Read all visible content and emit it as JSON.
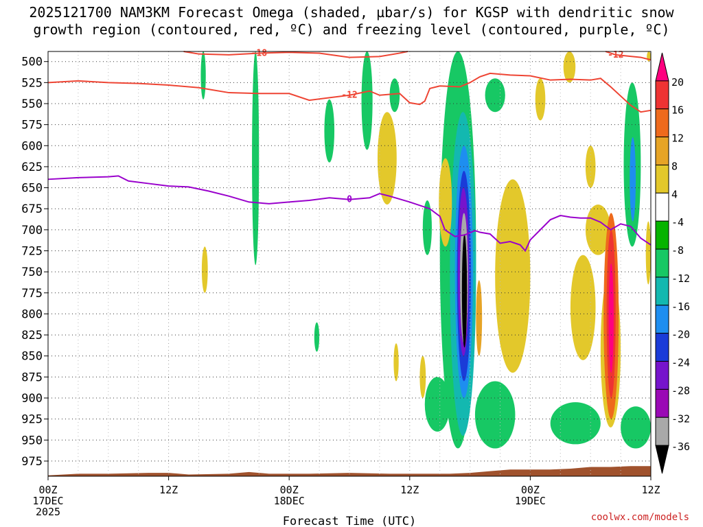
{
  "header": {
    "title_line1": "2025121700 NAM3KM Forecast Omega (shaded, µbar/s) for KGSP with dendritic snow",
    "title_line2": "growth region (contoured, red, ºC) and freezing level (contoured, purple, ºC)"
  },
  "footer": {
    "credit": "coolwx.com/models"
  },
  "chart_data": {
    "type": "heatmap",
    "xlabel": "Forecast Time (UTC)",
    "ylabel": "",
    "x_ticks": [
      {
        "h": 0,
        "l1": "00Z",
        "l2": "17DEC",
        "l3": "2025"
      },
      {
        "h": 12,
        "l1": "12Z",
        "l2": "",
        "l3": ""
      },
      {
        "h": 24,
        "l1": "00Z",
        "l2": "18DEC",
        "l3": ""
      },
      {
        "h": 36,
        "l1": "12Z",
        "l2": "",
        "l3": ""
      },
      {
        "h": 48,
        "l1": "00Z",
        "l2": "19DEC",
        "l3": ""
      },
      {
        "h": 60,
        "l1": "12Z",
        "l2": "",
        "l3": ""
      }
    ],
    "xlim": [
      0,
      60
    ],
    "y_ticks": [
      500,
      525,
      550,
      575,
      600,
      625,
      650,
      675,
      700,
      725,
      750,
      775,
      800,
      825,
      850,
      875,
      900,
      925,
      950,
      975
    ],
    "ylim": [
      488,
      993
    ],
    "grid": true,
    "colorbar": {
      "labels": [
        "20",
        "16",
        "12",
        "8",
        "4",
        "-4",
        "-8",
        "-12",
        "-16",
        "-20",
        "-24",
        "-28",
        "-32",
        "-36"
      ],
      "bins": [
        {
          "color": "#ff007f",
          "label": ""
        },
        {
          "color": "#ee3333",
          "label": "20"
        },
        {
          "color": "#ee6a1c",
          "label": "16"
        },
        {
          "color": "#e6a426",
          "label": "12"
        },
        {
          "color": "#e3c82b",
          "label": "8"
        },
        {
          "color": "#ffffff",
          "label": "4"
        },
        {
          "color": "#06b300",
          "label": "-4"
        },
        {
          "color": "#17c864",
          "label": "-8"
        },
        {
          "color": "#13b8b0",
          "label": "-12"
        },
        {
          "color": "#1e8ef0",
          "label": "-16"
        },
        {
          "color": "#1a3bd8",
          "label": "-20"
        },
        {
          "color": "#7614cc",
          "label": "-24"
        },
        {
          "color": "#9a09b5",
          "label": "-28"
        },
        {
          "color": "#a9a9a9",
          "label": "-32"
        },
        {
          "color": "#000000",
          "label": "-36"
        }
      ]
    },
    "contours": [
      {
        "name": "",
        "label": "-18",
        "color": "#ee4433",
        "points": [
          [
            13.5,
            488
          ],
          [
            15,
            491
          ],
          [
            18,
            492
          ],
          [
            21,
            490
          ],
          [
            24,
            489
          ],
          [
            27,
            490
          ],
          [
            30,
            495
          ],
          [
            33,
            494
          ],
          [
            35,
            490
          ],
          [
            35.8,
            488
          ]
        ]
      },
      {
        "name": "",
        "label": "-12",
        "color": "#ee4433",
        "points": [
          [
            0,
            525
          ],
          [
            3,
            523
          ],
          [
            6,
            525
          ],
          [
            9,
            526
          ],
          [
            12,
            528
          ],
          [
            15,
            531
          ],
          [
            18,
            537
          ],
          [
            21,
            538
          ],
          [
            24,
            538
          ],
          [
            26,
            546
          ],
          [
            28,
            543
          ],
          [
            30,
            540
          ],
          [
            32,
            535
          ],
          [
            33,
            540
          ],
          [
            35,
            538
          ],
          [
            36,
            549
          ],
          [
            37,
            551
          ],
          [
            37.5,
            547
          ],
          [
            38,
            532
          ],
          [
            39,
            529
          ],
          [
            41,
            530
          ],
          [
            42,
            525
          ],
          [
            43,
            518
          ],
          [
            44,
            514
          ],
          [
            46,
            516
          ],
          [
            48,
            517
          ],
          [
            50,
            522
          ],
          [
            52,
            521
          ],
          [
            54,
            522
          ],
          [
            55,
            520
          ],
          [
            56,
            530
          ],
          [
            58,
            552
          ],
          [
            59,
            560
          ],
          [
            60,
            558
          ]
        ]
      },
      {
        "name": "",
        "label": "-12",
        "color": "#ee4433",
        "points": [
          [
            55.5,
            488
          ],
          [
            56.5,
            492
          ],
          [
            59,
            495
          ],
          [
            60,
            498
          ]
        ]
      },
      {
        "name": "",
        "label": "0",
        "color": "#9900cc",
        "points": [
          [
            0,
            640
          ],
          [
            3,
            638
          ],
          [
            6,
            637
          ],
          [
            7,
            636
          ],
          [
            8,
            642
          ],
          [
            10,
            645
          ],
          [
            12,
            648
          ],
          [
            14,
            649
          ],
          [
            16,
            654
          ],
          [
            18,
            660
          ],
          [
            20,
            667
          ],
          [
            22,
            669
          ],
          [
            24,
            667
          ],
          [
            26,
            665
          ],
          [
            28,
            662
          ],
          [
            30,
            664
          ],
          [
            32,
            662
          ],
          [
            33,
            657
          ],
          [
            34,
            660
          ],
          [
            36,
            667
          ],
          [
            38,
            675
          ],
          [
            39,
            684
          ],
          [
            39.5,
            700
          ],
          [
            40.5,
            708
          ],
          [
            41.5,
            706
          ],
          [
            42.5,
            701
          ],
          [
            43,
            703
          ],
          [
            44,
            705
          ],
          [
            45,
            716
          ],
          [
            46,
            714
          ],
          [
            47,
            718
          ],
          [
            47.5,
            725
          ],
          [
            48,
            712
          ],
          [
            49,
            700
          ],
          [
            50,
            688
          ],
          [
            51,
            683
          ],
          [
            52,
            685
          ],
          [
            53,
            686
          ],
          [
            54,
            686
          ],
          [
            55,
            691
          ],
          [
            56,
            700
          ],
          [
            57,
            693
          ],
          [
            58,
            696
          ],
          [
            59,
            710
          ],
          [
            60,
            718
          ]
        ]
      }
    ],
    "blobs": [
      {
        "color": "#17c864",
        "x0": 15.2,
        "x1": 15.7,
        "p0": 488,
        "p1": 545
      },
      {
        "color": "#17c864",
        "x0": 20.3,
        "x1": 21,
        "p0": 488,
        "p1": 742
      },
      {
        "color": "#17c864",
        "x0": 31.2,
        "x1": 32.3,
        "p0": 488,
        "p1": 605
      },
      {
        "color": "#17c864",
        "x0": 34,
        "x1": 35,
        "p0": 520,
        "p1": 560
      },
      {
        "color": "#17c864",
        "x0": 27.5,
        "x1": 28.5,
        "p0": 545,
        "p1": 620
      },
      {
        "color": "#17c864",
        "x0": 26.5,
        "x1": 27,
        "p0": 810,
        "p1": 845
      },
      {
        "color": "#e3c82b",
        "x0": 32.8,
        "x1": 34.7,
        "p0": 560,
        "p1": 670
      },
      {
        "color": "#e3c82b",
        "x0": 15.3,
        "x1": 15.9,
        "p0": 720,
        "p1": 775
      },
      {
        "color": "#e3c82b",
        "x0": 34.4,
        "x1": 34.9,
        "p0": 835,
        "p1": 880
      },
      {
        "color": "#e3c82b",
        "x0": 37,
        "x1": 37.6,
        "p0": 850,
        "p1": 900
      },
      {
        "color": "#17c864",
        "x0": 37.3,
        "x1": 38.2,
        "p0": 665,
        "p1": 730
      },
      {
        "color": "#17c864",
        "x0": 39,
        "x1": 42.6,
        "p0": 488,
        "p1": 960
      },
      {
        "color": "#13b8b0",
        "x0": 40,
        "x1": 42.6,
        "p0": 560,
        "p1": 945
      },
      {
        "color": "#1e8ef0",
        "x0": 40.5,
        "x1": 42.3,
        "p0": 600,
        "p1": 900
      },
      {
        "color": "#1a3bd8",
        "x0": 40.7,
        "x1": 42.1,
        "p0": 630,
        "p1": 880
      },
      {
        "color": "#7614cc",
        "x0": 40.8,
        "x1": 41.9,
        "p0": 650,
        "p1": 850
      },
      {
        "color": "#a9a9a9",
        "x0": 41,
        "x1": 41.8,
        "p0": 680,
        "p1": 835
      },
      {
        "color": "#000000",
        "x0": 41.2,
        "x1": 41.7,
        "p0": 705,
        "p1": 840
      },
      {
        "color": "#e3c82b",
        "x0": 44.5,
        "x1": 48,
        "p0": 640,
        "p1": 870
      },
      {
        "color": "#e6a426",
        "x0": 42.6,
        "x1": 43.2,
        "p0": 760,
        "p1": 850
      },
      {
        "color": "#e6a426",
        "x0": 39.4,
        "x1": 40.1,
        "p0": 630,
        "p1": 700
      },
      {
        "color": "#e3c82b",
        "x0": 38.9,
        "x1": 40.2,
        "p0": 615,
        "p1": 720
      },
      {
        "color": "#17c864",
        "x0": 43.5,
        "x1": 45.5,
        "p0": 520,
        "p1": 560
      },
      {
        "color": "#e3c82b",
        "x0": 48.5,
        "x1": 49.5,
        "p0": 520,
        "p1": 570
      },
      {
        "color": "#e3c82b",
        "x0": 51.3,
        "x1": 52.5,
        "p0": 488,
        "p1": 525
      },
      {
        "color": "#e3c82b",
        "x0": 52,
        "x1": 54.5,
        "p0": 730,
        "p1": 855
      },
      {
        "color": "#e3c82b",
        "x0": 53.5,
        "x1": 54.5,
        "p0": 600,
        "p1": 650
      },
      {
        "color": "#e3c82b",
        "x0": 53.5,
        "x1": 56,
        "p0": 670,
        "p1": 730
      },
      {
        "color": "#e3c82b",
        "x0": 55,
        "x1": 57,
        "p0": 750,
        "p1": 935
      },
      {
        "color": "#ee6a1c",
        "x0": 55.3,
        "x1": 56.8,
        "p0": 680,
        "p1": 925
      },
      {
        "color": "#ee3333",
        "x0": 55.6,
        "x1": 56.5,
        "p0": 700,
        "p1": 900
      },
      {
        "color": "#ff007f",
        "x0": 55.8,
        "x1": 56.3,
        "p0": 740,
        "p1": 870
      },
      {
        "color": "#17c864",
        "x0": 57.3,
        "x1": 59,
        "p0": 525,
        "p1": 720
      },
      {
        "color": "#1e8ef0",
        "x0": 57.9,
        "x1": 58.5,
        "p0": 590,
        "p1": 690
      },
      {
        "color": "#e3c82b",
        "x0": 59.5,
        "x1": 60,
        "p0": 690,
        "p1": 765
      },
      {
        "color": "#e3c82b",
        "x0": 59.6,
        "x1": 60,
        "p0": 488,
        "p1": 500
      },
      {
        "color": "#17c864",
        "x0": 37.5,
        "x1": 40,
        "p0": 875,
        "p1": 940
      },
      {
        "color": "#17c864",
        "x0": 42.5,
        "x1": 46.5,
        "p0": 880,
        "p1": 960
      },
      {
        "color": "#17c864",
        "x0": 50,
        "x1": 55,
        "p0": 905,
        "p1": 955
      },
      {
        "color": "#17c864",
        "x0": 57,
        "x1": 60,
        "p0": 910,
        "p1": 960
      }
    ],
    "terrain": {
      "color": "#a0522d",
      "points": [
        [
          0,
          992
        ],
        [
          3,
          990
        ],
        [
          6,
          990
        ],
        [
          10,
          989
        ],
        [
          12,
          989
        ],
        [
          14,
          991
        ],
        [
          18,
          990
        ],
        [
          20,
          988
        ],
        [
          22,
          990
        ],
        [
          26,
          990
        ],
        [
          30,
          989
        ],
        [
          34,
          990
        ],
        [
          38,
          990
        ],
        [
          40,
          990
        ],
        [
          42,
          989
        ],
        [
          44,
          987
        ],
        [
          46,
          985
        ],
        [
          48,
          985
        ],
        [
          50,
          985
        ],
        [
          52,
          984
        ],
        [
          54,
          982
        ],
        [
          56,
          982
        ],
        [
          58,
          981
        ],
        [
          60,
          981
        ]
      ]
    }
  }
}
